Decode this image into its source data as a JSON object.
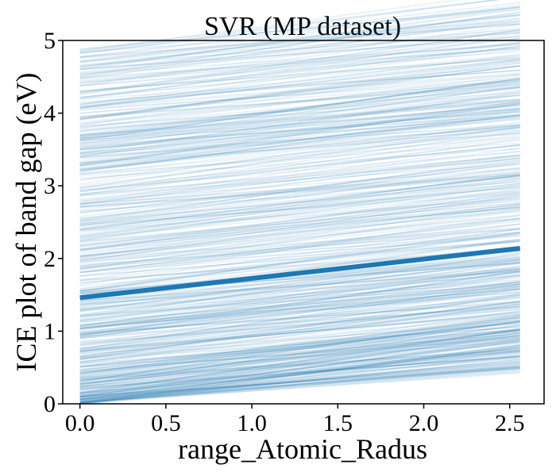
{
  "chart_data": {
    "type": "line",
    "title": "SVR (MP dataset)",
    "xlabel": "range_Atomic_Radus",
    "ylabel": "ICE plot of band gap (eV)",
    "xlim": [
      -0.1,
      2.7
    ],
    "ylim": [
      0,
      5
    ],
    "xticks": [
      "0.0",
      "0.5",
      "1.0",
      "1.5",
      "2.0",
      "2.5"
    ],
    "yticks": [
      "0",
      "1",
      "2",
      "3",
      "4",
      "5"
    ],
    "grid": false,
    "legend": "none",
    "ice_lines": {
      "color": "#1f77b4",
      "count": 600,
      "x_range": [
        0.0,
        2.56
      ],
      "start_range": [
        0.0,
        4.9
      ],
      "slope_range": [
        0.15,
        0.35
      ]
    },
    "series": [
      {
        "x": [
          0.0,
          2.56
        ],
        "values": [
          1.46,
          2.14
        ],
        "color": "#1f77b4"
      }
    ]
  }
}
